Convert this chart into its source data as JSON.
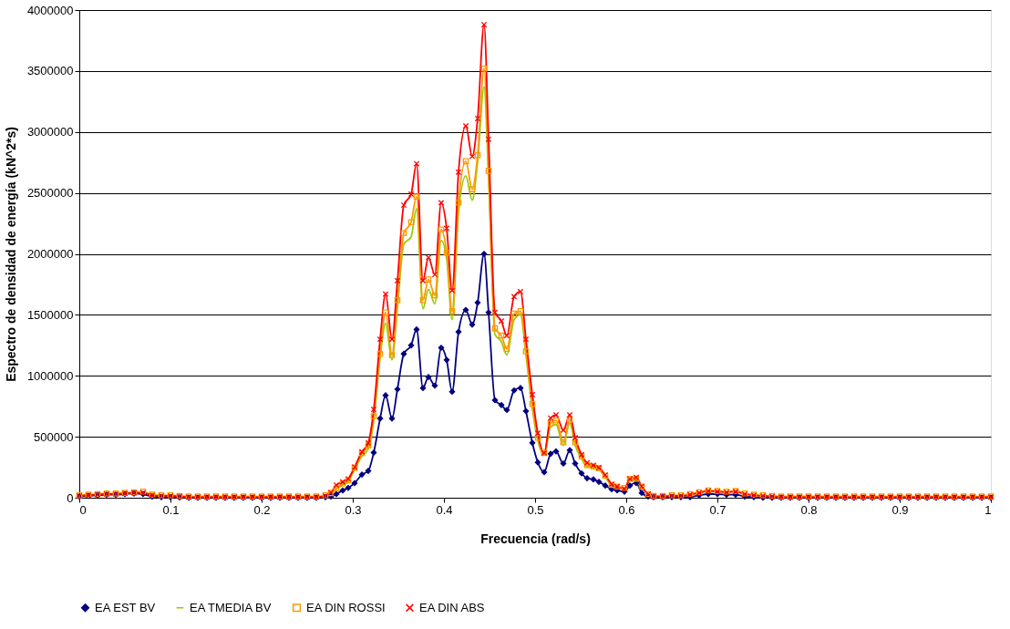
{
  "chart_data": {
    "type": "line",
    "xlabel": "Frecuencia (rad/s)",
    "ylabel": "Espectro de densidad de energía (kN^2*s)",
    "x": [
      0,
      0.01,
      0.02,
      0.03,
      0.04,
      0.05,
      0.06,
      0.07,
      0.08,
      0.09,
      0.1,
      0.11,
      0.12,
      0.13,
      0.14,
      0.15,
      0.16,
      0.17,
      0.18,
      0.19,
      0.2,
      0.21,
      0.22,
      0.23,
      0.24,
      0.25,
      0.26,
      0.27,
      0.276,
      0.282,
      0.289,
      0.295,
      0.302,
      0.31,
      0.317,
      0.323,
      0.33,
      0.336,
      0.343,
      0.349,
      0.356,
      0.364,
      0.37,
      0.377,
      0.383,
      0.39,
      0.397,
      0.403,
      0.409,
      0.416,
      0.424,
      0.431,
      0.437,
      0.444,
      0.449,
      0.456,
      0.463,
      0.469,
      0.477,
      0.484,
      0.49,
      0.497,
      0.503,
      0.51,
      0.517,
      0.523,
      0.531,
      0.538,
      0.544,
      0.551,
      0.557,
      0.564,
      0.57,
      0.577,
      0.584,
      0.59,
      0.598,
      0.604,
      0.611,
      0.617,
      0.624,
      0.63,
      0.64,
      0.65,
      0.66,
      0.67,
      0.68,
      0.69,
      0.7,
      0.71,
      0.72,
      0.73,
      0.74,
      0.75,
      0.76,
      0.77,
      0.78,
      0.79,
      0.8,
      0.81,
      0.82,
      0.83,
      0.84,
      0.85,
      0.86,
      0.87,
      0.88,
      0.89,
      0.9,
      0.91,
      0.92,
      0.93,
      0.94,
      0.95,
      0.96,
      0.97,
      0.98,
      0.99,
      1
    ],
    "series": [
      {
        "name": "EA EST BV",
        "color": "#000080",
        "marker": "diamond",
        "values": [
          10000,
          15000,
          20000,
          25000,
          25000,
          30000,
          35000,
          30000,
          10000,
          5000,
          5000,
          3000,
          0,
          0,
          0,
          0,
          0,
          0,
          0,
          0,
          0,
          0,
          0,
          0,
          0,
          0,
          0,
          5000,
          10000,
          30000,
          60000,
          80000,
          120000,
          190000,
          220000,
          370000,
          650000,
          840000,
          650000,
          890000,
          1180000,
          1250000,
          1380000,
          900000,
          990000,
          920000,
          1230000,
          1130000,
          870000,
          1360000,
          1540000,
          1420000,
          1600000,
          2000000,
          1520000,
          800000,
          760000,
          720000,
          880000,
          900000,
          710000,
          450000,
          290000,
          210000,
          360000,
          380000,
          280000,
          390000,
          280000,
          200000,
          160000,
          150000,
          130000,
          100000,
          70000,
          60000,
          50000,
          100000,
          120000,
          40000,
          10000,
          5000,
          5000,
          5000,
          5000,
          5000,
          20000,
          30000,
          30000,
          25000,
          25000,
          10000,
          5000,
          0,
          0,
          0,
          0,
          0,
          0,
          0,
          0,
          0,
          0,
          0,
          0,
          0,
          0,
          0,
          0,
          0,
          0,
          0,
          0,
          0,
          0,
          0,
          0,
          0,
          0
        ]
      },
      {
        "name": "EA TMEDIA BV",
        "color": "#99cc00",
        "marker": "none",
        "values": [
          null,
          null,
          null,
          null,
          null,
          null,
          null,
          null,
          null,
          null,
          null,
          null,
          null,
          null,
          null,
          null,
          null,
          null,
          null,
          null,
          null,
          null,
          null,
          null,
          null,
          null,
          null,
          null,
          35000,
          70000,
          105000,
          135000,
          230000,
          340000,
          400000,
          630000,
          1150000,
          1430000,
          1130000,
          1560000,
          2080000,
          2140000,
          2370000,
          1550000,
          1710000,
          1590000,
          2110000,
          1960000,
          1460000,
          2340000,
          2640000,
          2440000,
          2760000,
          3370000,
          2610000,
          1340000,
          1280000,
          1170000,
          1460000,
          1500000,
          1170000,
          729000,
          470000,
          350000,
          580000,
          600000,
          430000,
          610000,
          430000,
          320000,
          255000,
          245000,
          230000,
          170000,
          100000,
          85000,
          75000,
          145000,
          145000,
          85000,
          28000,
          null,
          null,
          null,
          null,
          null,
          null,
          null,
          null,
          null,
          null,
          null,
          null,
          null,
          null,
          null,
          null,
          null,
          null,
          null,
          null,
          null,
          null,
          null,
          null,
          null,
          null,
          null,
          null,
          null,
          null,
          null,
          null,
          null,
          null,
          null,
          null,
          null,
          null
        ]
      },
      {
        "name": "EA DIN ROSSI",
        "color": "#ff9900",
        "marker": "square",
        "values": [
          20000,
          25000,
          30000,
          35000,
          35000,
          40000,
          45000,
          50000,
          25000,
          20000,
          20000,
          15000,
          10000,
          10000,
          10000,
          10000,
          10000,
          10000,
          10000,
          10000,
          10000,
          10000,
          10000,
          10000,
          10000,
          10000,
          10000,
          20000,
          38000,
          77000,
          116000,
          143000,
          246000,
          364000,
          429000,
          669000,
          1180000,
          1520000,
          1170000,
          1620000,
          2170000,
          2260000,
          2470000,
          1620000,
          1790000,
          1660000,
          2200000,
          2010000,
          1530000,
          2420000,
          2760000,
          2530000,
          2810000,
          3520000,
          2680000,
          1390000,
          1330000,
          1220000,
          1510000,
          1530000,
          1200000,
          768000,
          492000,
          367000,
          609000,
          634000,
          455000,
          642000,
          455000,
          339000,
          267000,
          255000,
          242000,
          180000,
          105000,
          92000,
          80000,
          155000,
          155000,
          92000,
          30000,
          15000,
          15000,
          20000,
          20000,
          30000,
          45000,
          60000,
          55000,
          50000,
          55000,
          35000,
          25000,
          20000,
          15000,
          10000,
          10000,
          10000,
          10000,
          10000,
          10000,
          10000,
          10000,
          10000,
          10000,
          10000,
          10000,
          10000,
          10000,
          10000,
          10000,
          10000,
          10000,
          10000,
          10000,
          10000,
          10000,
          10000,
          10000
        ]
      },
      {
        "name": "EA DIN ABS",
        "color": "#ff0000",
        "marker": "cross",
        "values": [
          15000,
          20000,
          25000,
          30000,
          30000,
          35000,
          40000,
          40000,
          20000,
          15000,
          15000,
          10000,
          5000,
          5000,
          5000,
          5000,
          5000,
          5000,
          5000,
          5000,
          5000,
          5000,
          5000,
          5000,
          5000,
          5000,
          5000,
          15000,
          43000,
          103000,
          130000,
          155000,
          252000,
          377000,
          450000,
          724000,
          1300000,
          1670000,
          1300000,
          1780000,
          2400000,
          2490000,
          2740000,
          1780000,
          1970000,
          1830000,
          2420000,
          2210000,
          1700000,
          2670000,
          3050000,
          2800000,
          3110000,
          3880000,
          2940000,
          1520000,
          1450000,
          1330000,
          1650000,
          1690000,
          1300000,
          846000,
          530000,
          367000,
          654000,
          679000,
          554000,
          679000,
          492000,
          354000,
          287000,
          267000,
          247000,
          187000,
          112000,
          92000,
          73000,
          155000,
          167000,
          92000,
          30000,
          10000,
          10000,
          15000,
          15000,
          25000,
          40000,
          55000,
          50000,
          45000,
          50000,
          30000,
          20000,
          15000,
          10000,
          5000,
          5000,
          5000,
          5000,
          5000,
          5000,
          5000,
          5000,
          5000,
          5000,
          5000,
          5000,
          5000,
          5000,
          5000,
          5000,
          5000,
          5000,
          5000,
          5000,
          5000,
          5000,
          5000,
          5000
        ]
      }
    ],
    "xlim": [
      0,
      1
    ],
    "xticks": [
      0,
      0.1,
      0.2,
      0.3,
      0.4,
      0.5,
      0.6,
      0.7,
      0.8,
      0.9,
      1
    ],
    "ylim": [
      0,
      4000000
    ],
    "yticks": [
      0,
      500000,
      1000000,
      1500000,
      2000000,
      2500000,
      3000000,
      3500000,
      4000000
    ],
    "grid": "y",
    "legend": "bottom"
  }
}
